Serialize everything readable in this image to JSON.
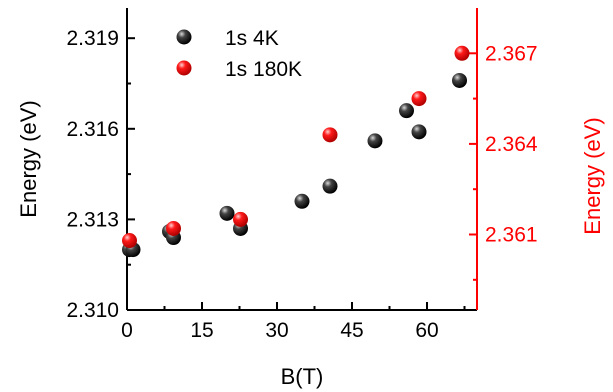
{
  "chart_data": {
    "type": "scatter",
    "title": "",
    "xlabel": "B(T)",
    "ylabel_left": "Energy (eV)",
    "ylabel_right": "Energy (eV)",
    "xlim": [
      0,
      70
    ],
    "ylim_left": [
      2.31,
      2.32
    ],
    "ylim_right": [
      2.3585,
      2.3685
    ],
    "x_ticks": [
      "0",
      "15",
      "30",
      "45",
      "60"
    ],
    "x_tick_values": [
      0,
      15,
      30,
      45,
      60
    ],
    "y_left_ticks": [
      "2.310",
      "2.313",
      "2.316",
      "2.319"
    ],
    "y_left_tick_values": [
      2.31,
      2.313,
      2.316,
      2.319
    ],
    "y_right_ticks": [
      "2.361",
      "2.364",
      "2.367"
    ],
    "y_right_tick_values": [
      2.361,
      2.364,
      2.367
    ],
    "legend_position": "top-left",
    "grid": false,
    "colors": {
      "series_4k": "#000000",
      "series_180k": "#ff0000",
      "right_axis": "#ff0000"
    },
    "series": [
      {
        "name": "1s 4K",
        "axis": "left",
        "color": "#000000",
        "x": [
          0.5,
          1.2,
          8.5,
          9.3,
          20.0,
          22.7,
          35.0,
          40.6,
          49.6,
          55.9,
          58.4,
          66.5
        ],
        "y": [
          2.312,
          2.312,
          2.3126,
          2.3124,
          2.3132,
          2.3127,
          2.3136,
          2.3141,
          2.3156,
          2.3166,
          2.3159,
          2.3176
        ]
      },
      {
        "name": "1s 180K",
        "axis": "right",
        "color": "#ff0000",
        "x": [
          0.5,
          9.3,
          22.7,
          40.6,
          58.4,
          67.0
        ],
        "y": [
          2.3608,
          2.3612,
          2.3615,
          2.3643,
          2.3655,
          2.367
        ]
      }
    ]
  }
}
